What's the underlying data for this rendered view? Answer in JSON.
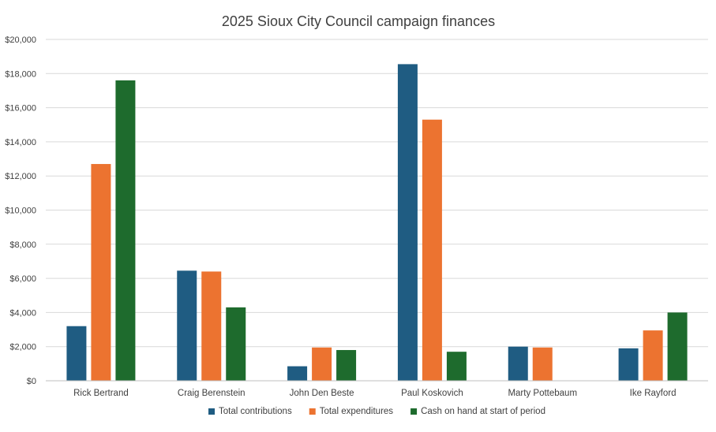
{
  "chart_data": {
    "type": "bar",
    "title": "2025 Sioux City Council campaign finances",
    "xlabel": "",
    "ylabel": "",
    "ylim": [
      0,
      20000
    ],
    "yticks": [
      0,
      2000,
      4000,
      6000,
      8000,
      10000,
      12000,
      14000,
      16000,
      18000,
      20000
    ],
    "ytick_labels": [
      "$0",
      "$2,000",
      "$4,000",
      "$6,000",
      "$8,000",
      "$10,000",
      "$12,000",
      "$14,000",
      "$16,000",
      "$18,000",
      "$20,000"
    ],
    "grid": true,
    "legend_position": "bottom",
    "categories": [
      "Rick Bertrand",
      "Craig Berenstein",
      "John Den Beste",
      "Paul Koskovich",
      "Marty Pottebaum",
      "Ike Rayford"
    ],
    "series": [
      {
        "name": "Total contributions",
        "color": "#1f5c82",
        "values": [
          3200,
          6450,
          850,
          18550,
          2000,
          1900
        ]
      },
      {
        "name": "Total expenditures",
        "color": "#ec7330",
        "values": [
          12700,
          6400,
          1950,
          15300,
          1950,
          2950
        ]
      },
      {
        "name": "Cash on hand at start of period",
        "color": "#1e6b2d",
        "values": [
          17600,
          4300,
          1800,
          1700,
          0,
          4000
        ]
      }
    ]
  }
}
